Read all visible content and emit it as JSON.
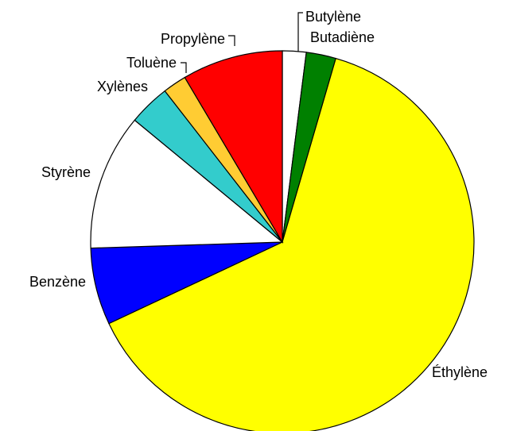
{
  "chart_data": {
    "type": "pie",
    "labels": [
      "Butylène",
      "Butadiène",
      "Éthylène",
      "Benzène",
      "Styrène",
      "Xylènes",
      "Toluène",
      "Propylène"
    ],
    "values": [
      2,
      2.5,
      63.5,
      6.5,
      11.5,
      3.5,
      2,
      8.5
    ],
    "colors": [
      "#ffffff",
      "#008000",
      "#ffff00",
      "#0000ff",
      "#ffffff",
      "#33cccc",
      "#ffcc33",
      "#ff0000"
    ]
  }
}
